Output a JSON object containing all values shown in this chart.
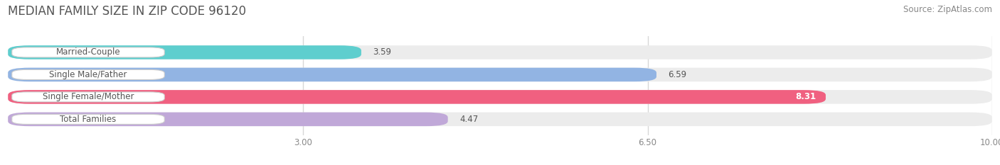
{
  "title": "MEDIAN FAMILY SIZE IN ZIP CODE 96120",
  "source": "Source: ZipAtlas.com",
  "categories": [
    "Married-Couple",
    "Single Male/Father",
    "Single Female/Mother",
    "Total Families"
  ],
  "values": [
    3.59,
    6.59,
    8.31,
    4.47
  ],
  "bar_colors": [
    "#5ecece",
    "#92b4e3",
    "#f06080",
    "#c0a8d8"
  ],
  "bar_bg_color": "#e8e8e8",
  "xlim": [
    0,
    10
  ],
  "xticks": [
    3.0,
    6.5,
    10.0
  ],
  "xtick_labels": [
    "3.00",
    "6.50",
    "10.00"
  ],
  "title_fontsize": 12,
  "source_fontsize": 8.5,
  "label_fontsize": 8.5,
  "value_fontsize": 8.5,
  "bar_height": 0.62,
  "background_color": "#ffffff",
  "bar_bg_color2": "#ececec",
  "grid_color": "#d8d8d8",
  "label_bg_color": "#ffffff",
  "label_text_color": "#555555",
  "value_color_inside": "#ffffff",
  "value_color_outside": "#555555",
  "inside_threshold": 8.0
}
